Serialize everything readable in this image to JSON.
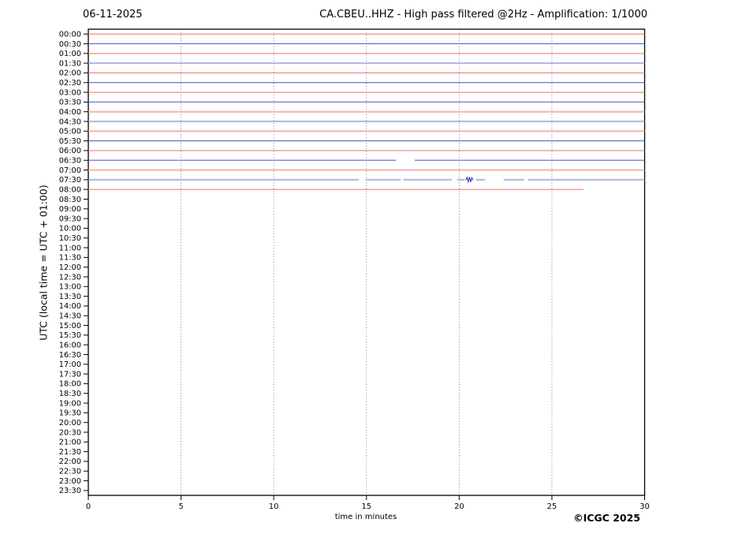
{
  "header": {
    "date": "06-11-2025",
    "title": "CA.CBEU..HHZ - High pass filtered @2Hz - Amplification: 1/1000"
  },
  "footer": {
    "copyright": "©ICGC 2025"
  },
  "chart_data": {
    "type": "line",
    "subtype": "helicorder",
    "title": "CA.CBEU..HHZ - High pass filtered @2Hz - Amplification: 1/1000",
    "date_label": "06-11-2025",
    "xlabel": "time in minutes",
    "ylabel": "UTC (local time = UTC + 01:00)",
    "x_range": [
      0,
      30
    ],
    "x_ticks": [
      0,
      5,
      10,
      15,
      20,
      25,
      30
    ],
    "grid_minutes": [
      5,
      10,
      15,
      20,
      25
    ],
    "grid_on": true,
    "row_labels": [
      "00:00",
      "00:30",
      "01:00",
      "01:30",
      "02:00",
      "02:30",
      "03:00",
      "03:30",
      "04:00",
      "04:30",
      "05:00",
      "05:30",
      "06:00",
      "06:30",
      "07:00",
      "07:30",
      "08:00",
      "08:30",
      "09:00",
      "09:30",
      "10:00",
      "10:30",
      "11:00",
      "11:30",
      "12:00",
      "12:30",
      "13:00",
      "13:30",
      "14:00",
      "14:30",
      "15:00",
      "15:30",
      "16:00",
      "16:30",
      "17:00",
      "17:30",
      "18:00",
      "18:30",
      "19:00",
      "19:30",
      "20:00",
      "20:30",
      "21:00",
      "21:30",
      "22:00",
      "22:30",
      "23:00",
      "23:30"
    ],
    "colors": {
      "red": "#f07878",
      "red_pale": "#f5a0a0",
      "blue": "#5858cc",
      "blue_pale": "#9fa6e2",
      "event": "#3535bb",
      "grid": "#707070",
      "axis": "#000000"
    },
    "traces": [
      {
        "time": "00:00",
        "row": 0,
        "color": "red",
        "style": "normal",
        "segments": [
          [
            0,
            30
          ]
        ]
      },
      {
        "time": "00:30",
        "row": 1,
        "color": "blue",
        "style": "normal",
        "segments": [
          [
            0,
            30
          ]
        ]
      },
      {
        "time": "01:00",
        "row": 2,
        "color": "red",
        "style": "normal",
        "segments": [
          [
            0,
            30
          ]
        ]
      },
      {
        "time": "01:30",
        "row": 3,
        "color": "blue",
        "style": "pale",
        "segments": [
          [
            0,
            30
          ]
        ]
      },
      {
        "time": "02:00",
        "row": 4,
        "color": "red",
        "style": "normal",
        "segments": [
          [
            0,
            30
          ]
        ]
      },
      {
        "time": "02:30",
        "row": 5,
        "color": "blue",
        "style": "normal",
        "segments": [
          [
            0,
            30
          ]
        ]
      },
      {
        "time": "03:00",
        "row": 6,
        "color": "red",
        "style": "normal",
        "segments": [
          [
            0,
            30
          ]
        ]
      },
      {
        "time": "03:30",
        "row": 7,
        "color": "blue",
        "style": "normal",
        "segments": [
          [
            0,
            30
          ]
        ]
      },
      {
        "time": "04:00",
        "row": 8,
        "color": "red",
        "style": "pale",
        "segments": [
          [
            0,
            30
          ]
        ]
      },
      {
        "time": "04:30",
        "row": 9,
        "color": "blue",
        "style": "pale",
        "segments": [
          [
            0,
            30
          ]
        ]
      },
      {
        "time": "05:00",
        "row": 10,
        "color": "red",
        "style": "pale",
        "segments": [
          [
            0,
            30
          ]
        ]
      },
      {
        "time": "05:30",
        "row": 11,
        "color": "blue",
        "style": "normal",
        "segments": [
          [
            0,
            30
          ]
        ]
      },
      {
        "time": "06:00",
        "row": 12,
        "color": "red",
        "style": "normal",
        "segments": [
          [
            0,
            30
          ]
        ]
      },
      {
        "time": "06:30",
        "row": 13,
        "color": "blue",
        "style": "normal",
        "segments": [
          [
            0,
            16.6
          ],
          [
            17.6,
            30
          ]
        ]
      },
      {
        "time": "07:00",
        "row": 14,
        "color": "red",
        "style": "pale",
        "segments": [
          [
            0,
            30
          ]
        ]
      },
      {
        "time": "07:30",
        "row": 15,
        "color": "blue",
        "style": "pale",
        "segments": [
          [
            0,
            14.6
          ],
          [
            14.95,
            16.85
          ],
          [
            17.0,
            19.6
          ],
          [
            19.9,
            20.3
          ],
          [
            20.9,
            21.4
          ],
          [
            22.4,
            23.5
          ],
          [
            23.7,
            30
          ]
        ],
        "event_minute": 20.55
      },
      {
        "time": "08:00",
        "row": 16,
        "color": "red",
        "style": "normal",
        "segments": [
          [
            0,
            26.7
          ]
        ]
      }
    ]
  }
}
